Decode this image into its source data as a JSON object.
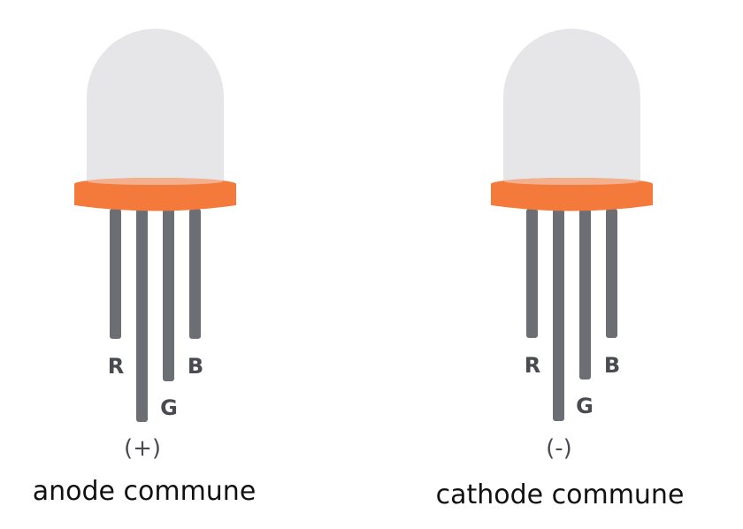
{
  "colors": {
    "dome": "#e6e6e8",
    "rim": "#f47a3b",
    "rim_highlight": "#f3b08e",
    "lead": "#6c6e73",
    "label": "#4a4b50",
    "caption": "#111111"
  },
  "leds": [
    {
      "id": "anode",
      "pins": {
        "r": "R",
        "g": "G",
        "b": "B"
      },
      "polarity": "(+)",
      "caption": "anode commune"
    },
    {
      "id": "cathode",
      "pins": {
        "r": "R",
        "g": "G",
        "b": "B"
      },
      "polarity": "(-)",
      "caption": "cathode commune"
    }
  ]
}
